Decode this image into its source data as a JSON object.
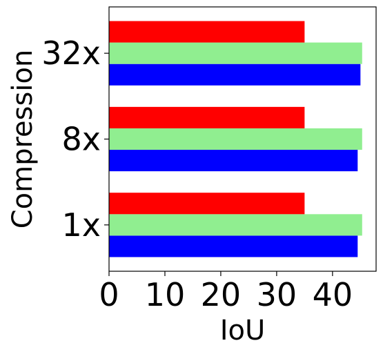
{
  "chart_data": {
    "type": "bar",
    "orientation": "horizontal",
    "categories": [
      "1x",
      "8x",
      "32x"
    ],
    "series": [
      {
        "values": [
          44.5,
          44.5,
          45.0
        ],
        "color": "#0000ff"
      },
      {
        "values": [
          45.3,
          45.3,
          45.3
        ],
        "color": "#90ee90"
      },
      {
        "values": [
          35.0,
          35.0,
          35.0
        ],
        "color": "#ff0000"
      }
    ],
    "xlabel": "IoU",
    "ylabel": "Compression",
    "xlim": [
      0,
      47.8
    ],
    "xticks": [
      0,
      10,
      20,
      30,
      40
    ],
    "grid": false,
    "legend": false
  }
}
